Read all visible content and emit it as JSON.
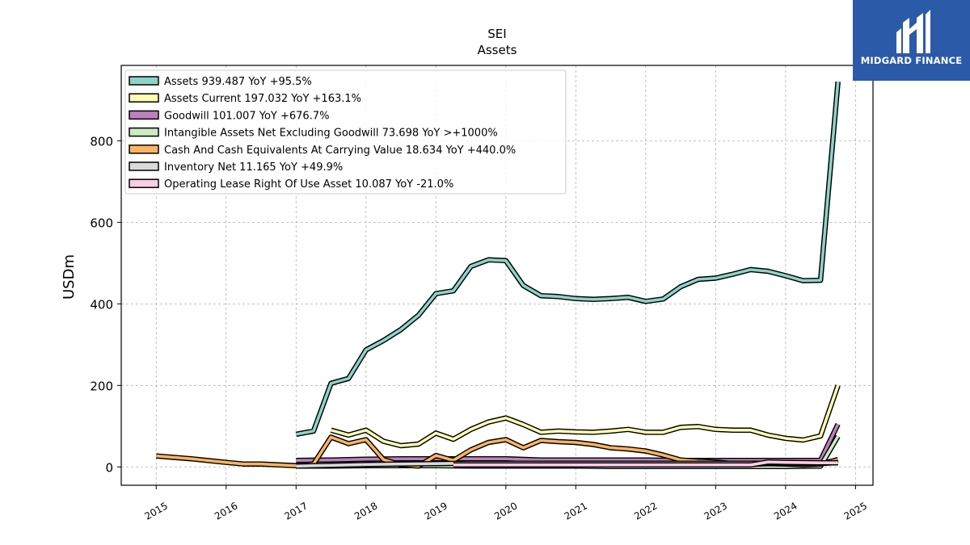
{
  "brand": {
    "name": "MIDGARD FINANCE",
    "background": "#2b5aa8"
  },
  "chart_data": {
    "type": "line",
    "title": "SEI",
    "subtitle": "Assets",
    "ylabel": "USDm",
    "xlabel": "",
    "xlim": [
      2014.5,
      2025.25
    ],
    "ylim": [
      -45,
      985
    ],
    "yticks": [
      0,
      200,
      400,
      600,
      800
    ],
    "xticks": [
      "2015",
      "2016",
      "2017",
      "2018",
      "2019",
      "2020",
      "2021",
      "2022",
      "2023",
      "2024",
      "2025"
    ],
    "grid": true,
    "legend_position": "top-left",
    "series": [
      {
        "name": "Assets  939.487 YoY +95.5%",
        "color": "#8dd3c7",
        "x": [
          2017.0,
          2017.25,
          2017.5,
          2017.75,
          2018.0,
          2018.25,
          2018.5,
          2018.75,
          2019.0,
          2019.25,
          2019.5,
          2019.75,
          2020.0,
          2020.25,
          2020.5,
          2020.75,
          2021.0,
          2021.25,
          2021.5,
          2021.75,
          2022.0,
          2022.25,
          2022.5,
          2022.75,
          2023.0,
          2023.25,
          2023.5,
          2023.75,
          2024.0,
          2024.25,
          2024.5,
          2024.75
        ],
        "y": [
          80,
          88,
          205,
          217,
          287,
          310,
          337,
          372,
          425,
          432,
          492,
          508,
          506,
          445,
          420,
          418,
          413,
          411,
          413,
          416,
          406,
          412,
          442,
          460,
          463,
          473,
          484,
          480,
          469,
          457,
          458,
          945
        ]
      },
      {
        "name": "Assets Current  197.032 YoY +163.1%",
        "color": "#ffffb3",
        "x": [
          2017.5,
          2017.75,
          2018.0,
          2018.25,
          2018.5,
          2018.75,
          2019.0,
          2019.25,
          2019.5,
          2019.75,
          2020.0,
          2020.25,
          2020.5,
          2020.75,
          2021.0,
          2021.25,
          2021.5,
          2021.75,
          2022.0,
          2022.25,
          2022.5,
          2022.75,
          2023.0,
          2023.25,
          2023.5,
          2023.75,
          2024.0,
          2024.25,
          2024.5,
          2024.75
        ],
        "y": [
          90,
          78,
          90,
          63,
          52,
          56,
          83,
          68,
          92,
          110,
          120,
          104,
          85,
          88,
          86,
          85,
          88,
          92,
          85,
          85,
          97,
          99,
          92,
          90,
          90,
          78,
          70,
          66,
          76,
          200
        ]
      },
      {
        "name": "Goodwill  101.007 YoY +676.7%",
        "color": "#bc80bd",
        "x": [
          2017.0,
          2017.5,
          2018.0,
          2018.5,
          2019.0,
          2019.5,
          2020.0,
          2020.5,
          2021.0,
          2021.5,
          2022.0,
          2022.5,
          2023.0,
          2023.5,
          2024.0,
          2024.5,
          2024.75
        ],
        "y": [
          16,
          17,
          19,
          20,
          20,
          20,
          20,
          17,
          17,
          17,
          17,
          16,
          16,
          16,
          16,
          16,
          105
        ]
      },
      {
        "name": "Intangible Assets Net Excluding Goodwill  73.698 YoY >+1000%",
        "color": "#ccebc5",
        "x": [
          2017.0,
          2017.5,
          2018.0,
          2018.5,
          2019.0,
          2019.5,
          2020.0,
          2020.5,
          2021.0,
          2021.5,
          2022.0,
          2022.5,
          2023.0,
          2023.5,
          2024.0,
          2024.5,
          2024.75
        ],
        "y": [
          2,
          2,
          3,
          3,
          3,
          2,
          2,
          2,
          2,
          1,
          1,
          1,
          1,
          1,
          1,
          2,
          75
        ]
      },
      {
        "name": "Cash And Cash Equivalents At Carrying Value  18.634 YoY +440.0%",
        "color": "#fdb462",
        "x": [
          2015.0,
          2015.5,
          2016.0,
          2016.25,
          2016.5,
          2016.75,
          2017.0,
          2017.25,
          2017.5,
          2017.75,
          2018.0,
          2018.25,
          2018.5,
          2018.75,
          2019.0,
          2019.25,
          2019.5,
          2019.75,
          2020.0,
          2020.25,
          2020.5,
          2020.75,
          2021.0,
          2021.25,
          2021.5,
          2021.75,
          2022.0,
          2022.25,
          2022.5,
          2022.75,
          2023.0,
          2023.25,
          2023.5,
          2023.75,
          2024.0,
          2024.25,
          2024.5,
          2024.75
        ],
        "y": [
          27,
          20,
          11,
          7,
          7,
          5,
          3,
          7,
          73,
          57,
          67,
          18,
          5,
          2,
          28,
          16,
          42,
          60,
          67,
          47,
          65,
          62,
          60,
          55,
          47,
          44,
          39,
          29,
          17,
          14,
          12,
          8,
          6,
          8,
          7,
          5,
          7,
          18
        ]
      },
      {
        "name": "Inventory Net  11.165 YoY +49.9%",
        "color": "#d9d9d9",
        "x": [
          2017.0,
          2017.5,
          2018.0,
          2018.5,
          2019.0,
          2019.5,
          2020.0,
          2020.5,
          2021.0,
          2021.5,
          2022.0,
          2022.5,
          2023.0,
          2023.5,
          2024.0,
          2024.5,
          2024.75
        ],
        "y": [
          2,
          4,
          6,
          7,
          8,
          9,
          9,
          9,
          9,
          9,
          9,
          9,
          9,
          9,
          9,
          8,
          11
        ]
      },
      {
        "name": "Operating Lease Right Of Use Asset  10.087 YoY -21.0%",
        "color": "#fccde5",
        "x": [
          2019.25,
          2019.5,
          2020.0,
          2020.5,
          2021.0,
          2021.5,
          2022.0,
          2022.5,
          2023.0,
          2023.25,
          2023.5,
          2023.75,
          2024.0,
          2024.5,
          2024.75
        ],
        "y": [
          5,
          5,
          5,
          5,
          5,
          5,
          5,
          5,
          5,
          5,
          5,
          12,
          11,
          10,
          10
        ]
      }
    ]
  }
}
